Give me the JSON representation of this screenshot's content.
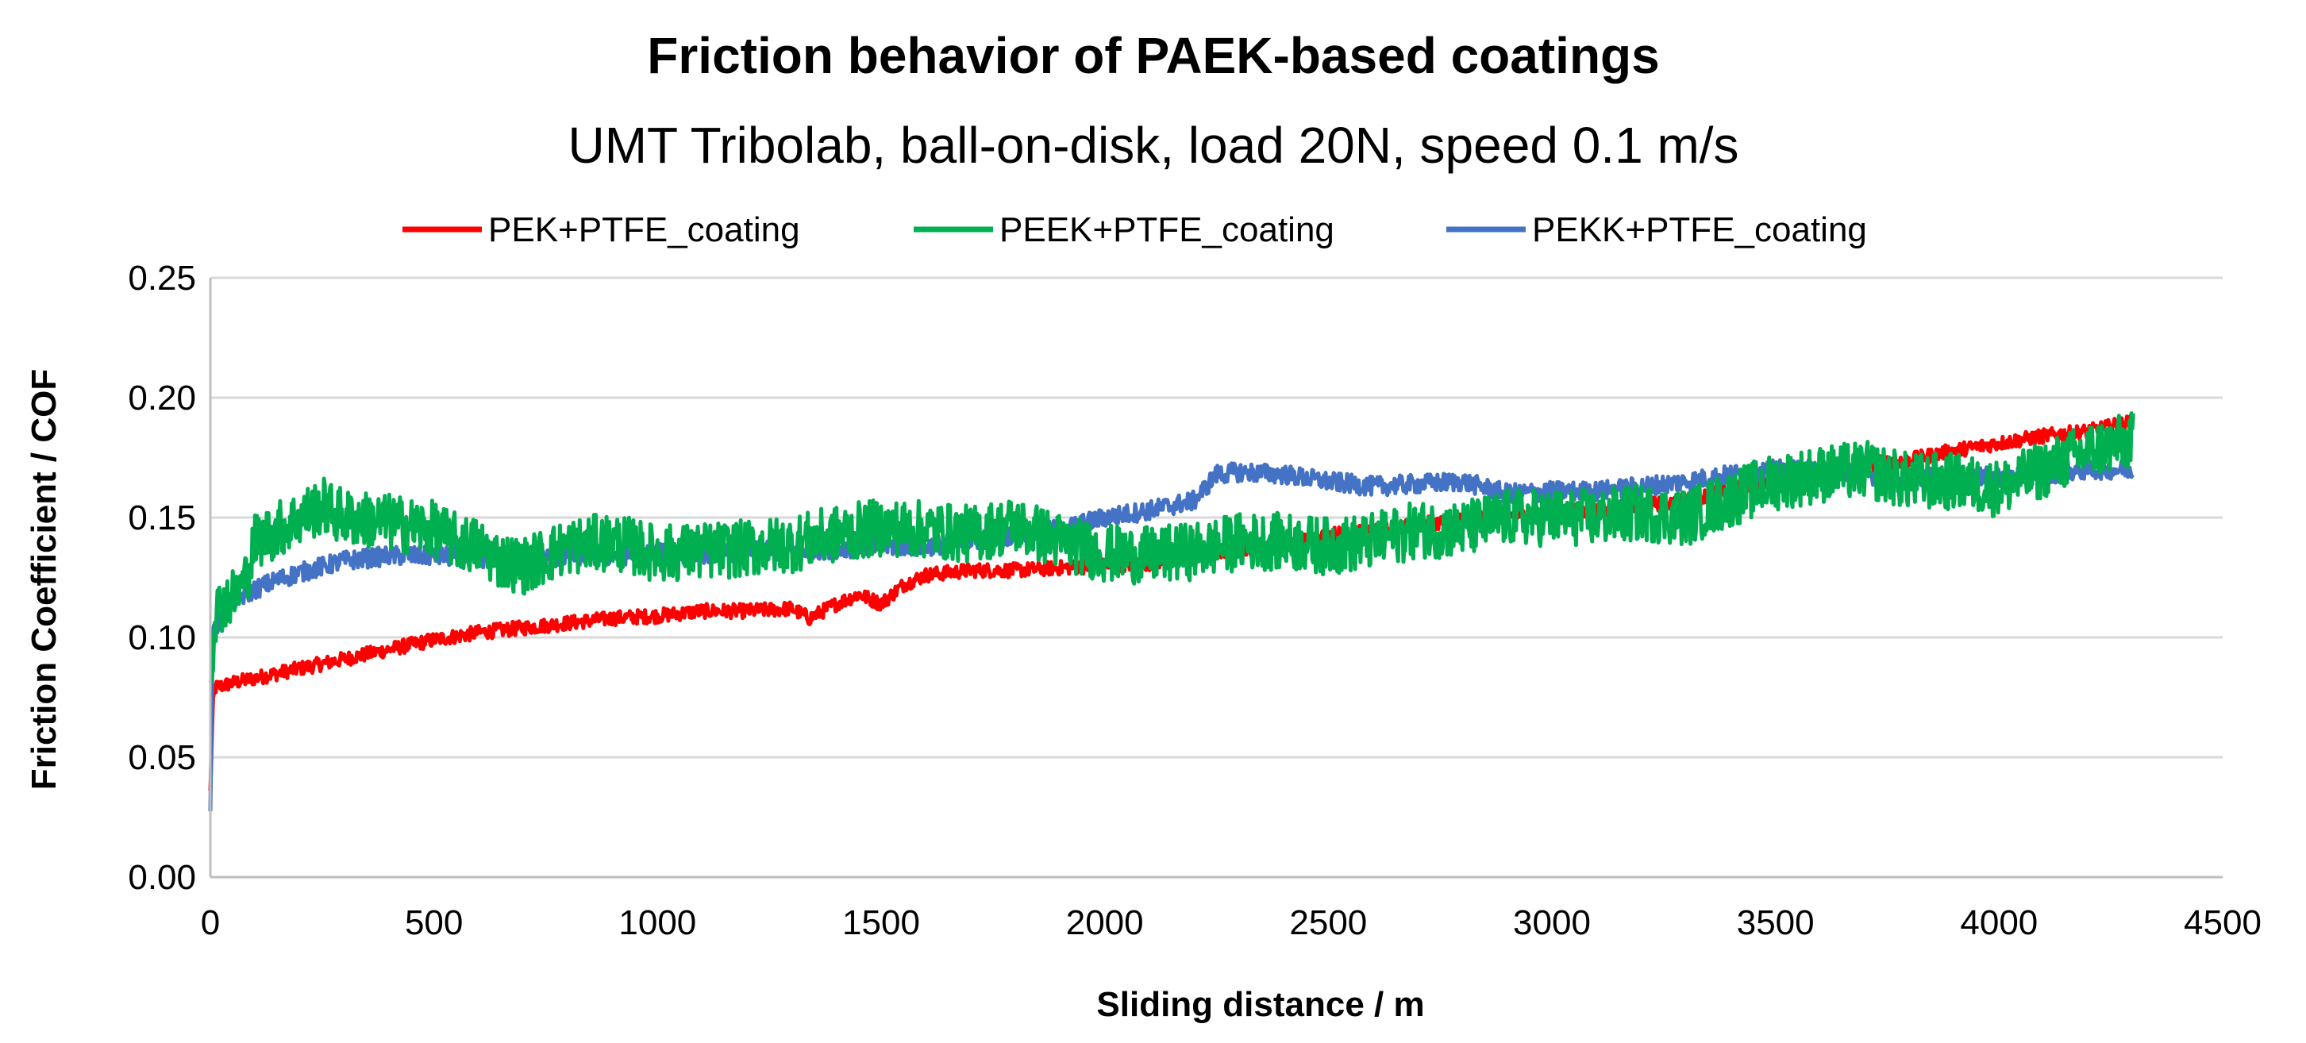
{
  "chart_data": {
    "type": "line",
    "title": "Friction behavior of PAEK-based coatings",
    "subtitle": "UMT Tribolab, ball-on-disk, load 20N, speed 0.1 m/s",
    "xlabel": "Sliding distance / m",
    "ylabel": "Friction Coefficient / COF",
    "xlim": [
      0,
      4500
    ],
    "ylim": [
      0,
      0.25
    ],
    "xticks": [
      0,
      500,
      1000,
      1500,
      2000,
      2500,
      3000,
      3500,
      4000,
      4500
    ],
    "yticks": [
      0.0,
      0.05,
      0.1,
      0.15,
      0.2,
      0.25
    ],
    "xtick_labels": [
      "0",
      "500",
      "1000",
      "1500",
      "2000",
      "2500",
      "3000",
      "3500",
      "4000",
      "4500"
    ],
    "ytick_labels": [
      "0.00",
      "0.05",
      "0.10",
      "0.15",
      "0.20",
      "0.25"
    ],
    "grid": "horizontal",
    "legend_position": "top",
    "series": [
      {
        "name": "PEK+PTFE_coating",
        "color": "#ff0000",
        "x": [
          0,
          5,
          10,
          50,
          100,
          200,
          300,
          400,
          500,
          600,
          700,
          800,
          900,
          1000,
          1100,
          1200,
          1300,
          1340,
          1400,
          1450,
          1500,
          1550,
          1600,
          1700,
          1800,
          1900,
          2000,
          2100,
          2200,
          2300,
          2400,
          2500,
          2600,
          2700,
          2800,
          2900,
          3000,
          3100,
          3200,
          3300,
          3400,
          3500,
          3600,
          3700,
          3800,
          3900,
          4000,
          4100,
          4200,
          4300
        ],
        "y": [
          0.035,
          0.07,
          0.079,
          0.081,
          0.083,
          0.087,
          0.091,
          0.095,
          0.099,
          0.102,
          0.104,
          0.106,
          0.108,
          0.109,
          0.111,
          0.111,
          0.112,
          0.108,
          0.114,
          0.118,
          0.114,
          0.122,
          0.126,
          0.128,
          0.128,
          0.129,
          0.13,
          0.131,
          0.134,
          0.137,
          0.139,
          0.143,
          0.144,
          0.147,
          0.149,
          0.151,
          0.152,
          0.153,
          0.155,
          0.157,
          0.162,
          0.166,
          0.169,
          0.172,
          0.174,
          0.178,
          0.181,
          0.184,
          0.186,
          0.19
        ],
        "noise": 0.003
      },
      {
        "name": "PEEK+PTFE_coating",
        "color": "#00b050",
        "x": [
          0,
          10,
          30,
          60,
          80,
          100,
          150,
          200,
          250,
          300,
          400,
          500,
          550,
          600,
          650,
          700,
          800,
          900,
          1000,
          1100,
          1200,
          1300,
          1400,
          1500,
          1600,
          1700,
          1800,
          1900,
          2000,
          2100,
          2200,
          2300,
          2400,
          2500,
          2600,
          2700,
          2800,
          2900,
          3000,
          3100,
          3200,
          3300,
          3400,
          3500,
          3600,
          3700,
          3800,
          3900,
          4000,
          4100,
          4200,
          4300
        ],
        "y": [
          0.08,
          0.11,
          0.115,
          0.118,
          0.125,
          0.14,
          0.145,
          0.15,
          0.155,
          0.15,
          0.148,
          0.145,
          0.14,
          0.138,
          0.132,
          0.13,
          0.138,
          0.14,
          0.135,
          0.136,
          0.137,
          0.139,
          0.143,
          0.146,
          0.145,
          0.143,
          0.147,
          0.14,
          0.135,
          0.134,
          0.136,
          0.14,
          0.14,
          0.138,
          0.14,
          0.145,
          0.145,
          0.15,
          0.15,
          0.15,
          0.152,
          0.15,
          0.158,
          0.165,
          0.168,
          0.17,
          0.165,
          0.165,
          0.162,
          0.17,
          0.178,
          0.182
        ],
        "noise": 0.012
      },
      {
        "name": "PEKK+PTFE_coating",
        "color": "#4472c4",
        "x": [
          0,
          5,
          10,
          30,
          60,
          100,
          150,
          200,
          300,
          400,
          500,
          600,
          700,
          800,
          900,
          1000,
          1100,
          1200,
          1300,
          1400,
          1500,
          1600,
          1700,
          1800,
          1900,
          2000,
          2100,
          2200,
          2250,
          2300,
          2400,
          2500,
          2600,
          2700,
          2800,
          2900,
          3000,
          3100,
          3200,
          3300,
          3400,
          3500,
          3600,
          3700,
          3800,
          3900,
          4000,
          4100,
          4200,
          4300
        ],
        "y": [
          0.03,
          0.1,
          0.102,
          0.11,
          0.116,
          0.12,
          0.124,
          0.127,
          0.132,
          0.134,
          0.134,
          0.133,
          0.133,
          0.134,
          0.134,
          0.135,
          0.135,
          0.136,
          0.136,
          0.137,
          0.138,
          0.138,
          0.14,
          0.143,
          0.145,
          0.15,
          0.153,
          0.157,
          0.168,
          0.169,
          0.168,
          0.165,
          0.163,
          0.164,
          0.165,
          0.16,
          0.161,
          0.161,
          0.163,
          0.165,
          0.168,
          0.17,
          0.17,
          0.168,
          0.166,
          0.167,
          0.167,
          0.168,
          0.17,
          0.17
        ],
        "noise": 0.004
      }
    ]
  }
}
